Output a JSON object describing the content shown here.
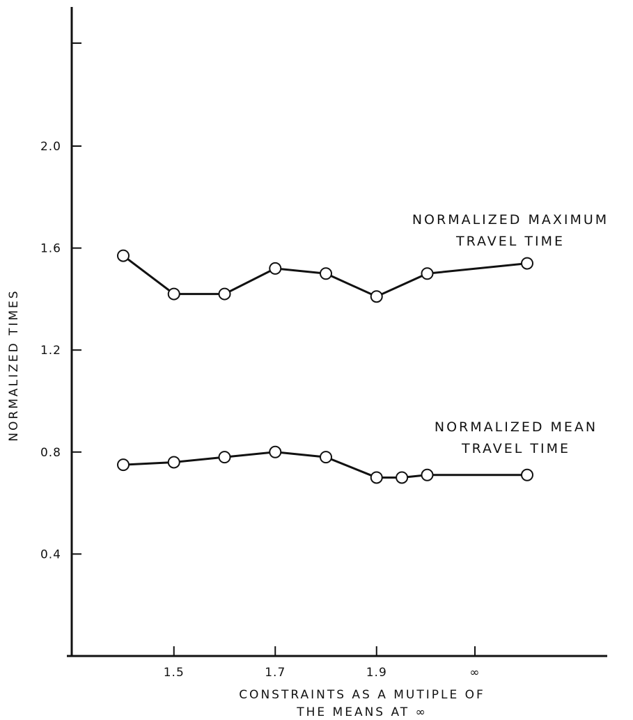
{
  "chart_data": {
    "type": "line",
    "title": "",
    "xlabel_lines": [
      "CONSTRAINTS AS A MUTIPLE OF",
      "THE MEANS AT ∞"
    ],
    "ylabel": "NORMALIZED TIMES",
    "x_ticks": [
      "1.5",
      "1.7",
      "1.9",
      "∞"
    ],
    "y_ticks": [
      "0.4",
      "0.8",
      "1.2",
      "1.6",
      "2.0"
    ],
    "ylim": [
      0,
      2.5
    ],
    "series": [
      {
        "label_lines": [
          "NORMALIZED MAXIMUM",
          "TRAVEL TIME"
        ],
        "x": [
          1.4,
          1.5,
          1.6,
          1.7,
          1.8,
          1.9,
          2.0,
          2.2
        ],
        "y": [
          1.57,
          1.42,
          1.42,
          1.52,
          1.5,
          1.41,
          1.5,
          1.54
        ]
      },
      {
        "label_lines": [
          "NORMALIZED MEAN",
          "TRAVEL TIME"
        ],
        "x": [
          1.4,
          1.5,
          1.6,
          1.7,
          1.8,
          1.9,
          1.95,
          2.0,
          2.2
        ],
        "y": [
          0.75,
          0.76,
          0.78,
          0.8,
          0.78,
          0.7,
          0.7,
          0.71,
          0.71
        ]
      }
    ]
  }
}
